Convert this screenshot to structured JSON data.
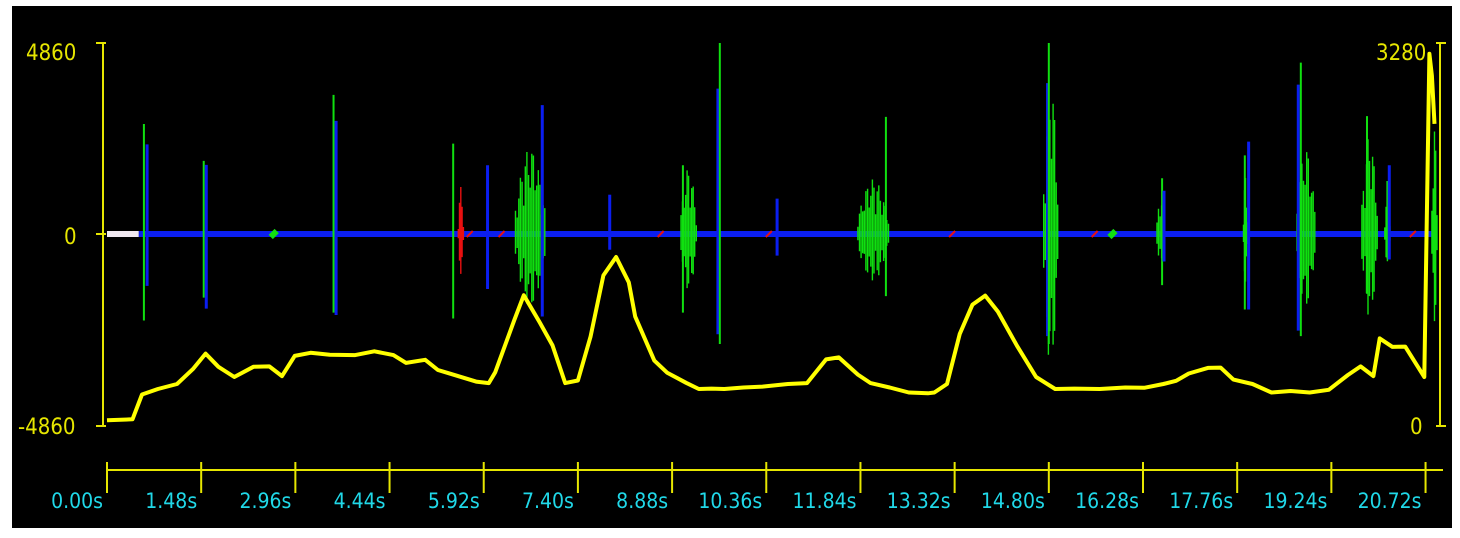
{
  "colors": {
    "background": "#000000",
    "axis": "#e6e600",
    "tick_text": "#20d8e8",
    "trace_blue": "#0b1ef0",
    "trace_green": "#10e010",
    "trace_red": "#e81010",
    "trace_white": "#f0e8f0",
    "envelope": "#ffff00"
  },
  "chart_data": {
    "type": "line",
    "left_axis": {
      "top_label": "4860",
      "mid_label": "0",
      "bottom_label": "-4860",
      "ylim": [
        -4860,
        4860
      ]
    },
    "right_axis": {
      "top_label": "3280",
      "bottom_label": "0",
      "ylim": [
        0,
        3280
      ]
    },
    "x_axis": {
      "unit": "s",
      "xlim": [
        0,
        20.9
      ],
      "ticks": [
        0.0,
        1.48,
        2.96,
        4.44,
        5.92,
        7.4,
        8.88,
        10.36,
        11.84,
        13.32,
        14.8,
        16.28,
        17.76,
        19.24,
        20.72
      ],
      "tick_labels": [
        "0.00s",
        "1.48s",
        "2.96s",
        "4.44s",
        "5.92s",
        "7.40s",
        "8.88s",
        "10.36s",
        "11.84s",
        "13.32s",
        "14.80s",
        "16.28s",
        "17.76s",
        "19.24s",
        "20.72s"
      ]
    },
    "series": [
      {
        "values_desc": "spike",
        "color": "blue",
        "spikes": [
          {
            "t": 0.58,
            "up": 2800,
            "down": -2200,
            "color": "green"
          },
          {
            "t": 0.63,
            "up": 2280,
            "down": -1320,
            "color": "blue"
          },
          {
            "t": 1.52,
            "up": 1860,
            "down": -1620,
            "color": "green"
          },
          {
            "t": 1.56,
            "up": 1760,
            "down": -1900,
            "color": "blue"
          },
          {
            "t": 3.56,
            "up": 3540,
            "down": -2000,
            "color": "green"
          },
          {
            "t": 3.6,
            "up": 2880,
            "down": -2060,
            "color": "blue"
          },
          {
            "t": 5.44,
            "up": 2300,
            "down": -2150,
            "color": "green"
          },
          {
            "t": 5.98,
            "up": 1750,
            "down": -1400,
            "color": "blue"
          },
          {
            "t": 6.84,
            "up": 3280,
            "down": -2100,
            "color": "blue"
          },
          {
            "t": 7.9,
            "up": 1000,
            "down": -400,
            "color": "blue"
          },
          {
            "t": 9.05,
            "up": 1750,
            "down": -2000,
            "color": "green"
          },
          {
            "t": 9.6,
            "up": 3700,
            "down": -2550,
            "color": "blue"
          },
          {
            "t": 9.63,
            "up": 4860,
            "down": -2800,
            "color": "green"
          },
          {
            "t": 10.53,
            "up": 900,
            "down": -550,
            "color": "blue"
          },
          {
            "t": 12.24,
            "up": 2980,
            "down": -1580,
            "color": "green"
          },
          {
            "t": 14.78,
            "up": 3840,
            "down": -2600,
            "color": "blue"
          },
          {
            "t": 14.8,
            "up": 4860,
            "down": -2800,
            "color": "green"
          },
          {
            "t": 16.58,
            "up": 1420,
            "down": -1300,
            "color": "green"
          },
          {
            "t": 16.61,
            "up": 1100,
            "down": -700,
            "color": "blue"
          },
          {
            "t": 17.88,
            "up": 2000,
            "down": -1920,
            "color": "green"
          },
          {
            "t": 17.94,
            "up": 2350,
            "down": -1920,
            "color": "blue"
          },
          {
            "t": 18.72,
            "up": 3800,
            "down": -2460,
            "color": "blue"
          },
          {
            "t": 18.76,
            "up": 4360,
            "down": -2600,
            "color": "green"
          },
          {
            "t": 19.8,
            "up": 3000,
            "down": -1520,
            "color": "green"
          },
          {
            "t": 20.12,
            "up": 1350,
            "down": -620,
            "color": "green"
          },
          {
            "t": 20.15,
            "up": 1750,
            "down": -650,
            "color": "blue"
          }
        ],
        "bursts": [
          {
            "t0": 5.52,
            "t1": 5.6,
            "amp": 1200,
            "color": "red"
          },
          {
            "t0": 6.42,
            "t1": 6.88,
            "amp": 2200,
            "color": "green"
          },
          {
            "t0": 9.02,
            "t1": 9.26,
            "amp": 1700,
            "color": "green"
          },
          {
            "t0": 11.8,
            "t1": 12.28,
            "amp": 1400,
            "color": "green"
          },
          {
            "t0": 14.72,
            "t1": 14.94,
            "amp": 4000,
            "color": "green"
          },
          {
            "t0": 16.5,
            "t1": 16.62,
            "amp": 1000,
            "color": "green"
          },
          {
            "t0": 17.86,
            "t1": 17.92,
            "amp": 1500,
            "color": "green"
          },
          {
            "t0": 18.7,
            "t1": 18.98,
            "amp": 2200,
            "color": "green"
          },
          {
            "t0": 19.72,
            "t1": 19.96,
            "amp": 2500,
            "color": "green"
          },
          {
            "t0": 20.08,
            "t1": 20.16,
            "amp": 900,
            "color": "green"
          },
          {
            "t0": 20.82,
            "t1": 20.9,
            "amp": 2800,
            "color": "green"
          }
        ]
      },
      {
        "values_desc": "envelope (right axis)",
        "color": "yellow",
        "x": [
          0.0,
          0.4,
          0.55,
          0.8,
          1.1,
          1.35,
          1.55,
          1.75,
          2.0,
          2.3,
          2.55,
          2.75,
          2.95,
          3.2,
          3.5,
          3.9,
          4.2,
          4.5,
          4.7,
          5.0,
          5.2,
          5.4,
          5.8,
          6.0,
          6.1,
          6.4,
          6.55,
          6.8,
          7.0,
          7.2,
          7.4,
          7.6,
          7.8,
          8.0,
          8.2,
          8.3,
          8.6,
          8.8,
          9.1,
          9.3,
          9.5,
          9.7,
          10.0,
          10.3,
          10.7,
          11.0,
          11.3,
          11.5,
          11.8,
          12.0,
          12.3,
          12.6,
          12.9,
          13.0,
          13.2,
          13.4,
          13.6,
          13.8,
          14.0,
          14.3,
          14.6,
          14.9,
          15.2,
          15.6,
          16.0,
          16.3,
          16.6,
          16.8,
          17.0,
          17.3,
          17.5,
          17.7,
          18.0,
          18.3,
          18.6,
          18.9,
          19.2,
          19.5,
          19.7,
          19.9,
          20.0,
          20.2,
          20.4,
          20.6,
          20.7,
          20.78,
          20.82,
          20.86
        ],
        "y": [
          50,
          70,
          270,
          330,
          360,
          500,
          620,
          520,
          420,
          520,
          510,
          440,
          600,
          640,
          610,
          620,
          640,
          620,
          540,
          580,
          480,
          460,
          380,
          380,
          460,
          920,
          1120,
          900,
          690,
          380,
          390,
          780,
          1290,
          1460,
          1230,
          950,
          560,
          470,
          370,
          330,
          320,
          330,
          330,
          350,
          360,
          380,
          570,
          600,
          440,
          380,
          330,
          300,
          280,
          300,
          360,
          800,
          1040,
          1130,
          980,
          700,
          420,
          330,
          320,
          330,
          330,
          340,
          360,
          400,
          450,
          510,
          500,
          410,
          360,
          300,
          300,
          300,
          310,
          450,
          510,
          440,
          750,
          690,
          680,
          520,
          420,
          3200,
          3000,
          2600
        ]
      }
    ],
    "segments": [
      {
        "t0": 0.0,
        "t1": 0.5,
        "color": "white"
      },
      {
        "t0": 0.5,
        "t1": 20.9,
        "color": "blue"
      }
    ],
    "markers": [
      {
        "t": 2.62,
        "color": "green"
      },
      {
        "t": 5.7,
        "color": "red"
      },
      {
        "t": 6.2,
        "color": "red"
      },
      {
        "t": 8.7,
        "color": "red"
      },
      {
        "t": 10.4,
        "color": "red"
      },
      {
        "t": 13.28,
        "color": "red"
      },
      {
        "t": 15.52,
        "color": "red"
      },
      {
        "t": 15.8,
        "color": "green"
      },
      {
        "t": 20.52,
        "color": "red"
      }
    ]
  }
}
